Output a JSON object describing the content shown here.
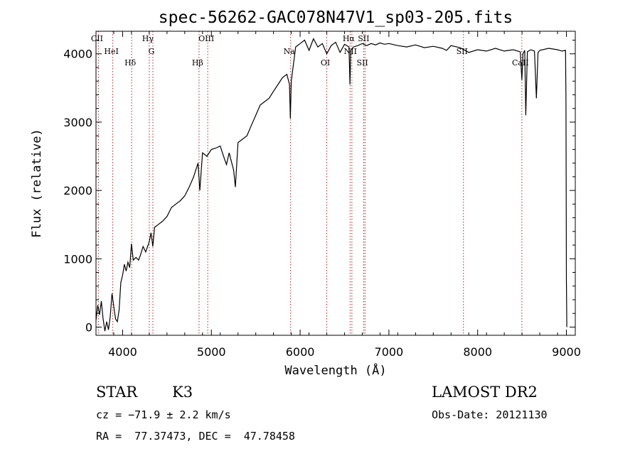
{
  "chart_data": {
    "type": "line",
    "title": "spec-56262-GAC078N47V1_sp03-205.fits",
    "xlabel": "Wavelength (Å)",
    "ylabel": "Flux (relative)",
    "xlim": [
      3700,
      9100
    ],
    "ylim": [
      -120,
      4330
    ],
    "x_ticks": [
      4000,
      5000,
      6000,
      7000,
      8000,
      9000
    ],
    "y_ticks": [
      0,
      1000,
      2000,
      3000,
      4000
    ],
    "grid": false,
    "series": [
      {
        "points": [
          [
            3700,
            100
          ],
          [
            3720,
            320
          ],
          [
            3740,
            180
          ],
          [
            3760,
            380
          ],
          [
            3780,
            120
          ],
          [
            3800,
            -60
          ],
          [
            3820,
            80
          ],
          [
            3840,
            -40
          ],
          [
            3860,
            150
          ],
          [
            3880,
            490
          ],
          [
            3900,
            300
          ],
          [
            3920,
            120
          ],
          [
            3940,
            80
          ],
          [
            3960,
            250
          ],
          [
            3980,
            650
          ],
          [
            4000,
            760
          ],
          [
            4020,
            920
          ],
          [
            4040,
            820
          ],
          [
            4060,
            950
          ],
          [
            4080,
            870
          ],
          [
            4100,
            1220
          ],
          [
            4120,
            980
          ],
          [
            4150,
            1020
          ],
          [
            4180,
            980
          ],
          [
            4200,
            1050
          ],
          [
            4230,
            1180
          ],
          [
            4260,
            1100
          ],
          [
            4300,
            1250
          ],
          [
            4320,
            1380
          ],
          [
            4340,
            1180
          ],
          [
            4360,
            1460
          ],
          [
            4400,
            1500
          ],
          [
            4450,
            1550
          ],
          [
            4500,
            1620
          ],
          [
            4550,
            1750
          ],
          [
            4600,
            1800
          ],
          [
            4650,
            1850
          ],
          [
            4700,
            1920
          ],
          [
            4750,
            2050
          ],
          [
            4800,
            2200
          ],
          [
            4850,
            2400
          ],
          [
            4870,
            2000
          ],
          [
            4900,
            2550
          ],
          [
            4950,
            2500
          ],
          [
            5000,
            2600
          ],
          [
            5050,
            2620
          ],
          [
            5100,
            2650
          ],
          [
            5150,
            2450
          ],
          [
            5170,
            2380
          ],
          [
            5200,
            2550
          ],
          [
            5250,
            2300
          ],
          [
            5270,
            2050
          ],
          [
            5300,
            2700
          ],
          [
            5350,
            2750
          ],
          [
            5400,
            2800
          ],
          [
            5450,
            2950
          ],
          [
            5500,
            3100
          ],
          [
            5550,
            3250
          ],
          [
            5600,
            3300
          ],
          [
            5650,
            3350
          ],
          [
            5700,
            3450
          ],
          [
            5750,
            3550
          ],
          [
            5800,
            3650
          ],
          [
            5850,
            3700
          ],
          [
            5880,
            3550
          ],
          [
            5890,
            3050
          ],
          [
            5900,
            3600
          ],
          [
            5950,
            4100
          ],
          [
            6000,
            4150
          ],
          [
            6050,
            4200
          ],
          [
            6100,
            4050
          ],
          [
            6150,
            4220
          ],
          [
            6200,
            4100
          ],
          [
            6250,
            4150
          ],
          [
            6300,
            4000
          ],
          [
            6350,
            4120
          ],
          [
            6400,
            4170
          ],
          [
            6450,
            4020
          ],
          [
            6500,
            4140
          ],
          [
            6550,
            4100
          ],
          [
            6562,
            3550
          ],
          [
            6570,
            4050
          ],
          [
            6600,
            4100
          ],
          [
            6650,
            4120
          ],
          [
            6700,
            4150
          ],
          [
            6750,
            4120
          ],
          [
            6800,
            4150
          ],
          [
            6850,
            4130
          ],
          [
            6900,
            4160
          ],
          [
            6950,
            4140
          ],
          [
            7000,
            4150
          ],
          [
            7100,
            4120
          ],
          [
            7200,
            4100
          ],
          [
            7300,
            4130
          ],
          [
            7400,
            4090
          ],
          [
            7500,
            4110
          ],
          [
            7600,
            4080
          ],
          [
            7650,
            4050
          ],
          [
            7700,
            4120
          ],
          [
            7800,
            4090
          ],
          [
            7900,
            4020
          ],
          [
            8000,
            4060
          ],
          [
            8100,
            4040
          ],
          [
            8200,
            4080
          ],
          [
            8300,
            4040
          ],
          [
            8400,
            4060
          ],
          [
            8480,
            4030
          ],
          [
            8498,
            3620
          ],
          [
            8510,
            4000
          ],
          [
            8530,
            4050
          ],
          [
            8542,
            3100
          ],
          [
            8560,
            4030
          ],
          [
            8600,
            4060
          ],
          [
            8640,
            4040
          ],
          [
            8662,
            3350
          ],
          [
            8680,
            4020
          ],
          [
            8700,
            4050
          ],
          [
            8800,
            4080
          ],
          [
            8900,
            4060
          ],
          [
            8950,
            4040
          ],
          [
            8990,
            4050
          ],
          [
            8995,
            3300
          ],
          [
            9000,
            700
          ],
          [
            9005,
            0
          ]
        ]
      }
    ],
    "spectral_lines": [
      {
        "name": "CII",
        "wl": 3727
      },
      {
        "name": "HeI",
        "wl": 3889
      },
      {
        "name": "Hδ",
        "wl": 4102
      },
      {
        "name": "Hγ",
        "wl": 4300
      },
      {
        "name": "G",
        "wl": 4341
      },
      {
        "name": "Hβ",
        "wl": 4861
      },
      {
        "name": "OIII",
        "wl": 4959
      },
      {
        "name": "Na",
        "wl": 5893
      },
      {
        "name": "OI",
        "wl": 6300
      },
      {
        "name": "Hα",
        "wl": 6563
      },
      {
        "name": "NII",
        "wl": 6583
      },
      {
        "name": "SII",
        "wl": 6717
      },
      {
        "name": "SII",
        "wl": 6731
      },
      {
        "name": "SII",
        "wl": 7840
      },
      {
        "name": "CaII",
        "wl": 8498
      }
    ]
  },
  "info": {
    "object_class": "STAR",
    "subclass": "K3",
    "survey": "LAMOST DR2",
    "cz": "cz = −71.9 ± 2.2 km/s",
    "obs_date": "Obs-Date: 20121130",
    "coords": "RA =  77.37473, DEC =  47.78458"
  }
}
